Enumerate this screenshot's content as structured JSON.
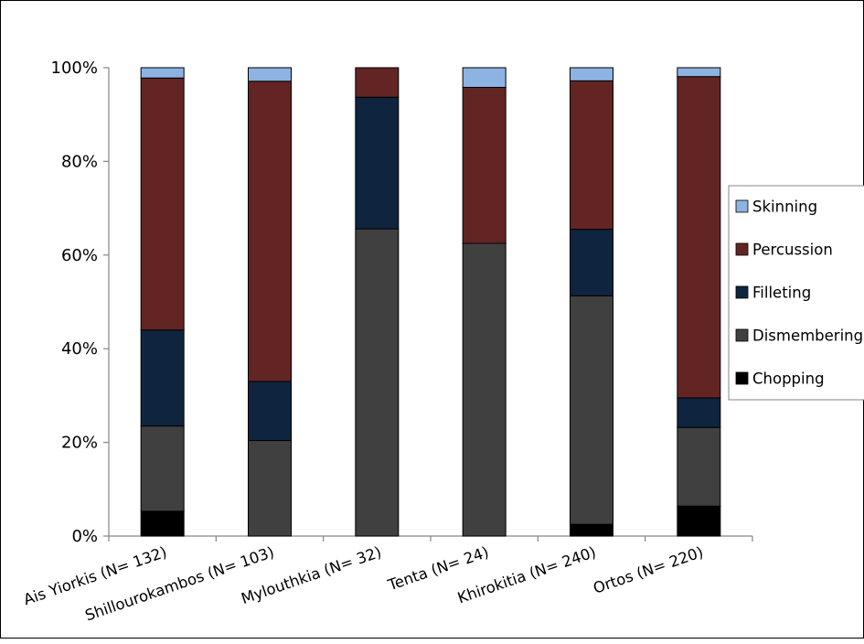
{
  "chart_data": {
    "type": "bar",
    "stacked": true,
    "percent_stacked": true,
    "title": "",
    "xlabel": "",
    "ylabel": "",
    "ylim": [
      0,
      100
    ],
    "y_ticks": [
      "0%",
      "20%",
      "40%",
      "60%",
      "80%",
      "100%"
    ],
    "y_tick_values": [
      0,
      20,
      40,
      60,
      80,
      100
    ],
    "grid": false,
    "legend_position": "right",
    "categories": [
      "Ais Yiorkis (N= 132)",
      "Shillourokambos (N= 103)",
      "Mylouthkia (N= 32)",
      "Tenta (N= 24)",
      "Khirokitia (N= 240)",
      "Ortos (N= 220)"
    ],
    "series": [
      {
        "name": "Chopping",
        "color": "#000000",
        "values": [
          5.3,
          0,
          0,
          0,
          2.5,
          6.4
        ]
      },
      {
        "name": "Dismembering",
        "color": "#404040",
        "values": [
          18.2,
          20.4,
          65.6,
          62.5,
          48.8,
          16.8
        ]
      },
      {
        "name": "Filleting",
        "color": "#0f243e",
        "values": [
          20.5,
          12.6,
          28.1,
          0,
          14.2,
          6.3
        ]
      },
      {
        "name": "Percussion",
        "color": "#632523",
        "values": [
          53.8,
          64.1,
          6.3,
          33.3,
          31.7,
          68.6
        ]
      },
      {
        "name": "Skinning",
        "color": "#8db3e2",
        "values": [
          2.2,
          2.9,
          0,
          4.2,
          2.8,
          1.9
        ]
      }
    ],
    "legend_order": [
      "Skinning",
      "Percussion",
      "Filleting",
      "Dismembering",
      "Chopping"
    ]
  }
}
